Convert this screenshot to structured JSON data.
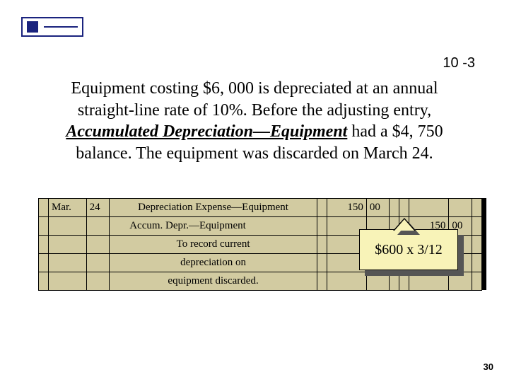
{
  "header": {
    "page_code": "10 -3"
  },
  "paragraph": {
    "pre": "Equipment costing $6, 000 is depreciated at an annual straight-line rate of 10%.  Before the adjusting entry, ",
    "account": "Accumulated Depreciation—Equipment",
    "post": " had a $4, 750 balance.  The equipment was discarded on March 24."
  },
  "ledger": {
    "bg_color": "#d2cba1",
    "rows": [
      {
        "month": "Mar.",
        "day": "24",
        "desc": "Depreciation Expense—Equipment",
        "debit_whole": "150",
        "debit_cents": "00",
        "credit_whole": "",
        "credit_cents": ""
      },
      {
        "month": "",
        "day": "",
        "desc": "Accum. Depr.—Equipment",
        "indent": true,
        "debit_whole": "",
        "debit_cents": "",
        "credit_whole": "150",
        "credit_cents": "00"
      },
      {
        "month": "",
        "day": "",
        "desc": "To record current",
        "debit_whole": "",
        "debit_cents": "",
        "credit_whole": "",
        "credit_cents": ""
      },
      {
        "month": "",
        "day": "",
        "desc": "depreciation on",
        "debit_whole": "",
        "debit_cents": "",
        "credit_whole": "",
        "credit_cents": ""
      },
      {
        "month": "",
        "day": "",
        "desc": "equipment discarded.",
        "debit_whole": "",
        "debit_cents": "",
        "credit_whole": "",
        "credit_cents": ""
      }
    ]
  },
  "callout": {
    "text": "$600 x 3/12",
    "bg_color": "#f8f3b8",
    "shadow_color": "#555555",
    "border_color": "#000000",
    "fontsize": 20
  },
  "footer": {
    "slide_number": "30"
  }
}
